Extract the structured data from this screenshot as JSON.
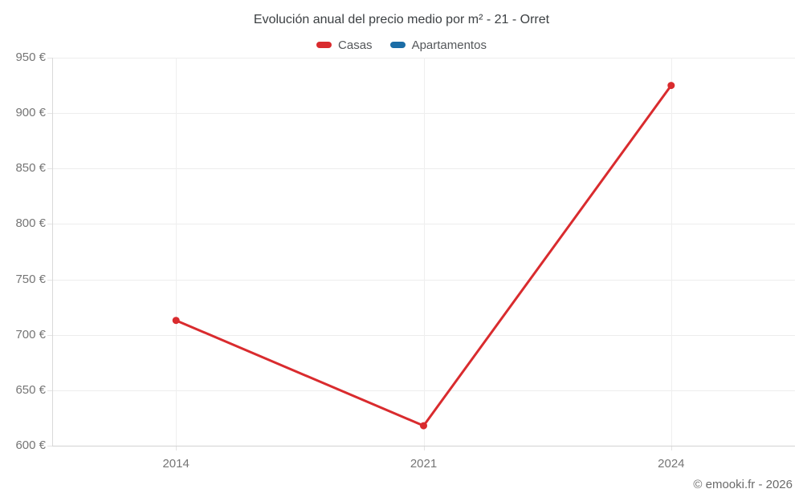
{
  "footer": "© emooki.fr - 2026",
  "colors": {
    "background": "#ffffff",
    "title_text": "#3c4043",
    "axis_label_text": "#757575",
    "legend_text": "#54575a",
    "gridline": "#ededed",
    "axis_line": "#d2d2d2",
    "footer_text": "#6b6b6b"
  },
  "chart_data": {
    "type": "line",
    "title": "Evolución anual del precio medio por m² - 21 - Orret",
    "categories": [
      "2014",
      "2021",
      "2024"
    ],
    "series": [
      {
        "name": "Casas",
        "color": "#d92b2e",
        "values": [
          713,
          618,
          925
        ]
      },
      {
        "name": "Apartamentos",
        "color": "#1b6da6",
        "values": []
      }
    ],
    "xlabel": "",
    "ylabel": "",
    "ylim": [
      600,
      950
    ],
    "ytick_step": 50,
    "ytick_suffix": " €",
    "grid": true,
    "legend_position": "top",
    "point_radius": 4.5,
    "line_width": 3
  }
}
